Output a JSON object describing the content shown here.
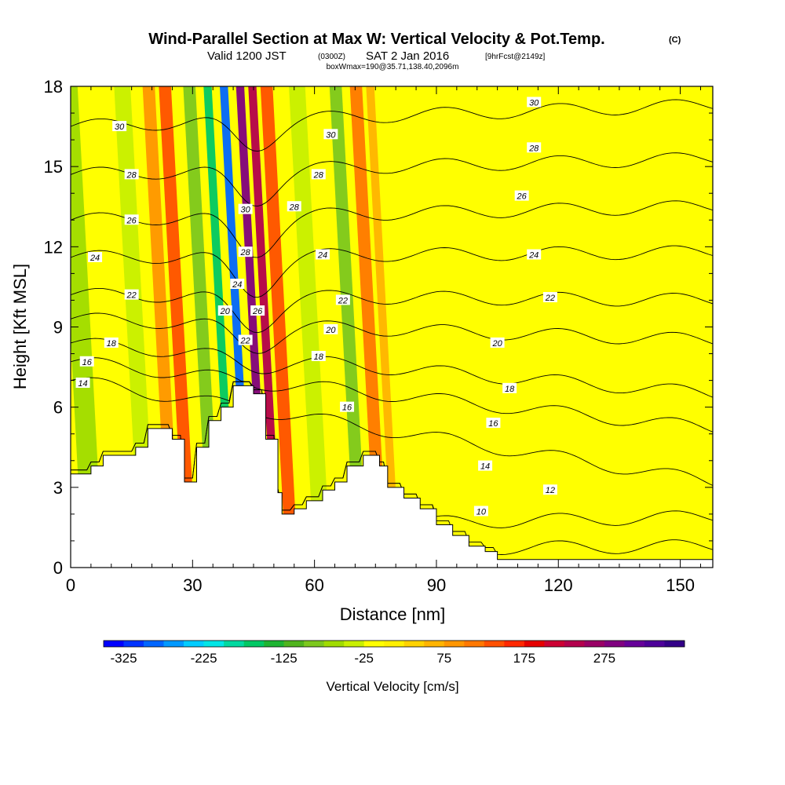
{
  "titles": {
    "title": "Wind-Parallel Section at Max W: Vertical Velocity & Pot.Temp.",
    "title_mark": "(C)",
    "subtitle_valid": "Valid 1200 JST",
    "subtitle_utc": "(0300Z)",
    "subtitle_date": "SAT 2 Jan 2016",
    "subtitle_fcst": "[9hrFcst@2149z]",
    "subtitle_box": "boxWmax=190@35.71,138.40,2096m"
  },
  "chart_data": {
    "type": "heatmap",
    "title": "Wind-Parallel Section at Max W: Vertical Velocity & Pot.Temp.",
    "xlabel": "Distance [nm]",
    "ylabel": "Height [Kft MSL]",
    "xlim": [
      0,
      158
    ],
    "ylim": [
      0,
      18
    ],
    "x_ticks": [
      0,
      30,
      60,
      90,
      120,
      150
    ],
    "y_ticks": [
      0,
      3,
      6,
      9,
      12,
      15,
      18
    ],
    "colorbar": {
      "label": "Vertical Velocity [cm/s]",
      "min": -350,
      "max": 375,
      "step": 25,
      "tick_values": [
        -325,
        -225,
        -125,
        -25,
        75,
        175,
        275
      ],
      "tick_labels": [
        "-325",
        "-225",
        "-125",
        "-25",
        "75",
        "175",
        "275"
      ],
      "colors": [
        "#0000ff",
        "#0033ff",
        "#0066ff",
        "#0099ff",
        "#00ccff",
        "#00e6e6",
        "#00d9a0",
        "#00c864",
        "#1eb432",
        "#50b41e",
        "#7dc81e",
        "#a0dc00",
        "#c8f000",
        "#ffff00",
        "#fff000",
        "#ffd200",
        "#ffb400",
        "#ff9600",
        "#ff7800",
        "#ff5000",
        "#ff2800",
        "#e60000",
        "#cc0033",
        "#b3004d",
        "#990066",
        "#800080",
        "#660099",
        "#4d0099",
        "#330088"
      ]
    },
    "velocity_bands": [
      {
        "x": 3,
        "w": 5,
        "v": -75
      },
      {
        "x": 17,
        "w": 4,
        "v": -50
      },
      {
        "x": 24,
        "w": 3,
        "v": 75
      },
      {
        "x": 28,
        "w": 3,
        "v": 125
      },
      {
        "x": 34,
        "w": 3,
        "v": -100
      },
      {
        "x": 39,
        "w": 2,
        "v": -175
      },
      {
        "x": 43,
        "w": 2,
        "v": -300
      },
      {
        "x": 47,
        "w": 2,
        "v": 275
      },
      {
        "x": 50,
        "w": 2,
        "v": 225
      },
      {
        "x": 53,
        "w": 3,
        "v": 125
      },
      {
        "x": 60,
        "w": 4,
        "v": -50
      },
      {
        "x": 70,
        "w": 3,
        "v": -100
      },
      {
        "x": 75,
        "w": 3,
        "v": 100
      },
      {
        "x": 79,
        "w": 2,
        "v": 50
      },
      {
        "x": 95,
        "w": 8,
        "v": -25
      },
      {
        "x": 112,
        "w": 6,
        "v": -25
      },
      {
        "x": 130,
        "w": 6,
        "v": -25
      },
      {
        "x": 145,
        "w": 6,
        "v": -25
      }
    ],
    "terrain": [
      [
        0,
        3.5
      ],
      [
        5,
        3.8
      ],
      [
        8,
        4.2
      ],
      [
        16,
        4.5
      ],
      [
        19,
        5.2
      ],
      [
        25,
        4.8
      ],
      [
        28,
        3.2
      ],
      [
        31,
        4.5
      ],
      [
        34,
        5.5
      ],
      [
        37,
        6.0
      ],
      [
        40,
        6.8
      ],
      [
        45,
        6.5
      ],
      [
        48,
        4.8
      ],
      [
        51,
        2.8
      ],
      [
        52,
        2.0
      ],
      [
        55,
        2.2
      ],
      [
        58,
        2.5
      ],
      [
        62,
        2.9
      ],
      [
        65,
        3.2
      ],
      [
        68,
        3.8
      ],
      [
        72,
        4.2
      ],
      [
        76,
        3.8
      ],
      [
        78,
        3.0
      ],
      [
        82,
        2.6
      ],
      [
        86,
        2.2
      ],
      [
        90,
        1.6
      ],
      [
        94,
        1.2
      ],
      [
        98,
        0.8
      ],
      [
        102,
        0.6
      ],
      [
        105,
        0.3
      ],
      [
        158,
        0.3
      ]
    ],
    "theta_contours": [
      {
        "label": "10",
        "left": 0.6,
        "right": 0.8,
        "dip": 0.0
      },
      {
        "label": "12",
        "left": 1.4,
        "right": 1.9,
        "dip": 0.0
      },
      {
        "label": "14",
        "left": 7.0,
        "right": 3.2,
        "dip": 0.0
      },
      {
        "label": "16",
        "left": 7.7,
        "right": 5.2,
        "dip": 0.1
      },
      {
        "label": "18",
        "left": 8.4,
        "right": 6.5,
        "dip": 0.4
      },
      {
        "label": "20",
        "left": 9.3,
        "right": 8.5,
        "dip": 0.9
      },
      {
        "label": "22",
        "left": 10.2,
        "right": 10.0,
        "dip": 1.2
      },
      {
        "label": "24",
        "left": 11.6,
        "right": 11.8,
        "dip": 1.4
      },
      {
        "label": "26",
        "left": 13.0,
        "right": 13.5,
        "dip": 1.4
      },
      {
        "label": "28",
        "left": 14.7,
        "right": 15.3,
        "dip": 1.2
      },
      {
        "label": "30",
        "left": 16.5,
        "right": 17.3,
        "dip": 1.0
      }
    ],
    "contour_labels": [
      {
        "text": "30",
        "x": 12,
        "y": 16.5
      },
      {
        "text": "28",
        "x": 15,
        "y": 14.7
      },
      {
        "text": "26",
        "x": 15,
        "y": 13.0
      },
      {
        "text": "24",
        "x": 6,
        "y": 11.6
      },
      {
        "text": "22",
        "x": 15,
        "y": 10.2
      },
      {
        "text": "18",
        "x": 10,
        "y": 8.4
      },
      {
        "text": "16",
        "x": 4,
        "y": 7.7
      },
      {
        "text": "14",
        "x": 3,
        "y": 6.9
      },
      {
        "text": "30",
        "x": 43,
        "y": 13.4
      },
      {
        "text": "28",
        "x": 43,
        "y": 11.8
      },
      {
        "text": "24",
        "x": 41,
        "y": 10.6
      },
      {
        "text": "20",
        "x": 38,
        "y": 9.6
      },
      {
        "text": "26",
        "x": 46,
        "y": 9.6
      },
      {
        "text": "22",
        "x": 43,
        "y": 8.5
      },
      {
        "text": "28",
        "x": 55,
        "y": 13.5
      },
      {
        "text": "30",
        "x": 64,
        "y": 16.2
      },
      {
        "text": "28",
        "x": 61,
        "y": 14.7
      },
      {
        "text": "24",
        "x": 62,
        "y": 11.7
      },
      {
        "text": "22",
        "x": 67,
        "y": 10.0
      },
      {
        "text": "20",
        "x": 64,
        "y": 8.9
      },
      {
        "text": "18",
        "x": 61,
        "y": 7.9
      },
      {
        "text": "16",
        "x": 68,
        "y": 6.0
      },
      {
        "text": "30",
        "x": 114,
        "y": 17.4
      },
      {
        "text": "28",
        "x": 114,
        "y": 15.7
      },
      {
        "text": "26",
        "x": 111,
        "y": 13.9
      },
      {
        "text": "24",
        "x": 114,
        "y": 11.7
      },
      {
        "text": "22",
        "x": 118,
        "y": 10.1
      },
      {
        "text": "20",
        "x": 105,
        "y": 8.4
      },
      {
        "text": "18",
        "x": 108,
        "y": 6.7
      },
      {
        "text": "16",
        "x": 104,
        "y": 5.4
      },
      {
        "text": "14",
        "x": 102,
        "y": 3.8
      },
      {
        "text": "12",
        "x": 118,
        "y": 2.9
      },
      {
        "text": "10",
        "x": 101,
        "y": 2.1
      }
    ]
  }
}
